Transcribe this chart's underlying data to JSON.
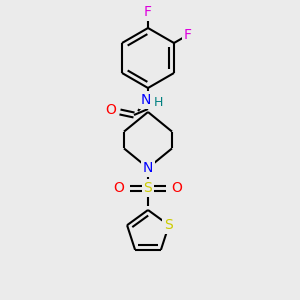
{
  "background_color": "#ebebeb",
  "bond_color": "#000000",
  "atom_colors": {
    "F": "#dd00dd",
    "O": "#ff0000",
    "N": "#0000ff",
    "S_sulfonyl": "#cccc00",
    "S_thiophene": "#cccc00",
    "H": "#008080",
    "C": "#000000"
  },
  "figsize": [
    3.0,
    3.0
  ],
  "dpi": 100
}
